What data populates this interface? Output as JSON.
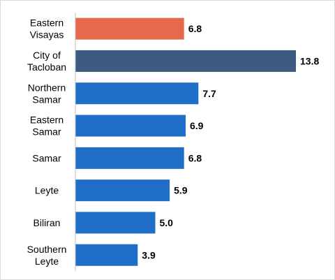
{
  "chart_data": {
    "type": "bar",
    "orientation": "horizontal",
    "title": "",
    "xlabel": "",
    "ylabel": "",
    "categories": [
      [
        "Eastern",
        "Visayas"
      ],
      [
        "City of",
        "Tacloban"
      ],
      [
        "Northern",
        "Samar"
      ],
      [
        "Eastern",
        "Samar"
      ],
      [
        "Samar"
      ],
      [
        "Leyte"
      ],
      [
        "Biliran"
      ],
      [
        "Southern",
        "Leyte"
      ]
    ],
    "values": [
      6.8,
      13.8,
      7.7,
      6.9,
      6.8,
      5.9,
      5.0,
      3.9
    ],
    "value_labels": [
      "6.8",
      "13.8",
      "7.7",
      "6.9",
      "6.8",
      "5.9",
      "5.0",
      "3.9"
    ],
    "bar_colors": [
      "#e8684d",
      "#3d5a80",
      "#1f6fc8",
      "#1f6fc8",
      "#1f6fc8",
      "#1f6fc8",
      "#1f6fc8",
      "#1f6fc8"
    ],
    "xlim": [
      0,
      14.3
    ],
    "grid": false,
    "legend": "none"
  }
}
